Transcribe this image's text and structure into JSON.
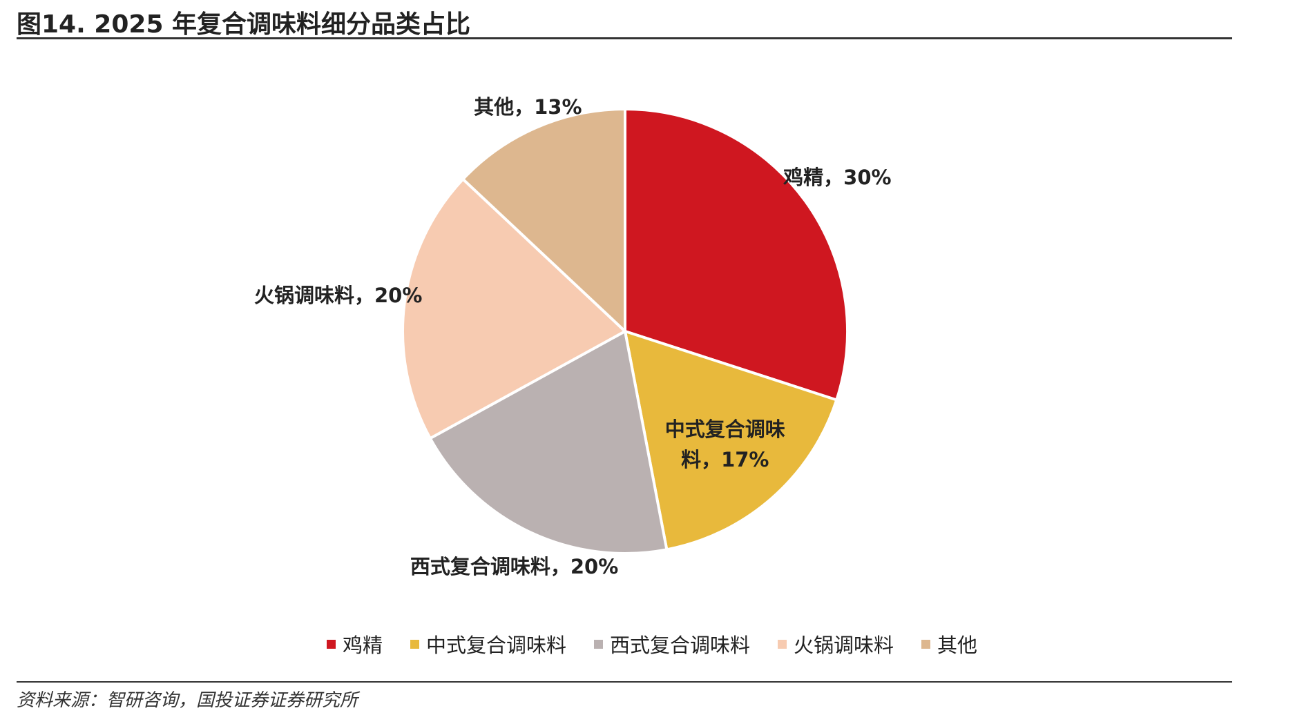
{
  "title": "图14. 2025 年复合调味料细分品类占比",
  "source": "资料来源：智研咨询，国投证券证券研究所",
  "chart_data": {
    "type": "pie",
    "categories": [
      "鸡精",
      "中式复合调味料",
      "西式复合调味料",
      "火锅调味料",
      "其他"
    ],
    "values": [
      30,
      17,
      20,
      20,
      13
    ],
    "value_labels": [
      "鸡精，30%",
      "中式复合调味料，17%",
      "西式复合调味料，20%",
      "火锅调味料，20%",
      "其他，13%"
    ],
    "colors": [
      "#cf1720",
      "#e8b93c",
      "#bab1b1",
      "#f7cbb1",
      "#ddb78f"
    ],
    "legend": "bottom"
  }
}
